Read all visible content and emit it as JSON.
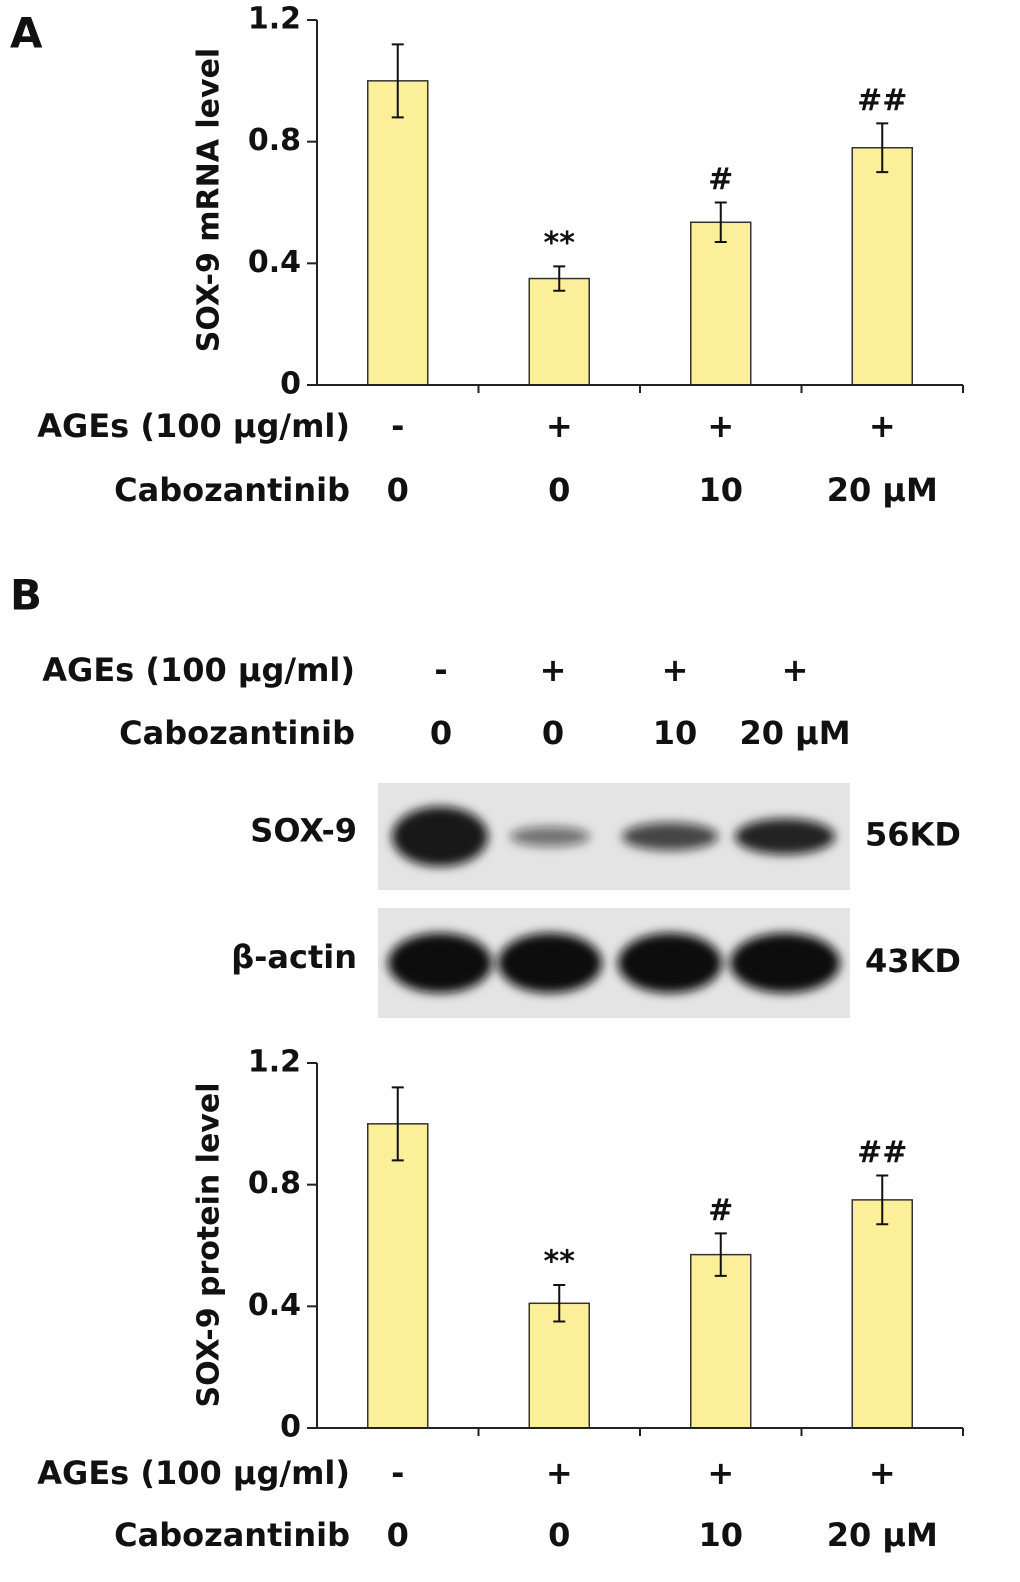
{
  "panels": [
    "A",
    "B"
  ],
  "chart_data": [
    {
      "type": "bar",
      "y_label": "SOX-9 mRNA level",
      "values": [
        1.0,
        0.35,
        0.535,
        0.78
      ],
      "errors": [
        0.12,
        0.04,
        0.065,
        0.08
      ],
      "annotations": [
        null,
        "**",
        "#",
        "##"
      ],
      "conditions": {
        "labels": [
          "AGEs (100 μg/ml)",
          "Cabozantinib"
        ],
        "rows": [
          [
            "-",
            "+",
            "+",
            "+"
          ],
          [
            "0",
            "0",
            "10",
            "20 μM"
          ]
        ]
      },
      "color": "#fbef9a",
      "ylim": [
        0,
        1.2
      ],
      "yticks": [
        0,
        0.4,
        0.8,
        1.2
      ]
    },
    {
      "type": "bar",
      "y_label": "SOX-9 protein level",
      "values": [
        1.0,
        0.41,
        0.57,
        0.75
      ],
      "errors": [
        0.12,
        0.06,
        0.07,
        0.08
      ],
      "annotations": [
        null,
        "**",
        "#",
        "##"
      ],
      "conditions": {
        "labels": [
          "AGEs (100 μg/ml)",
          "Cabozantinib"
        ],
        "rows": [
          [
            "-",
            "+",
            "+",
            "+"
          ],
          [
            "0",
            "0",
            "10",
            "20 μM"
          ]
        ]
      },
      "color": "#fbef9a",
      "ylim": [
        0,
        1.2
      ],
      "yticks": [
        0,
        0.4,
        0.8,
        1.2
      ]
    }
  ],
  "blot": {
    "conditions": {
      "labels": [
        "AGEs (100 μg/ml)",
        "Cabozantinib"
      ],
      "rows": [
        [
          "-",
          "+",
          "+",
          "+"
        ],
        [
          "0",
          "0",
          "10",
          "20 μM"
        ]
      ]
    },
    "bands": [
      {
        "label": "SOX-9",
        "size": "56KD"
      },
      {
        "label": "β-actin",
        "size": "43KD"
      }
    ]
  }
}
